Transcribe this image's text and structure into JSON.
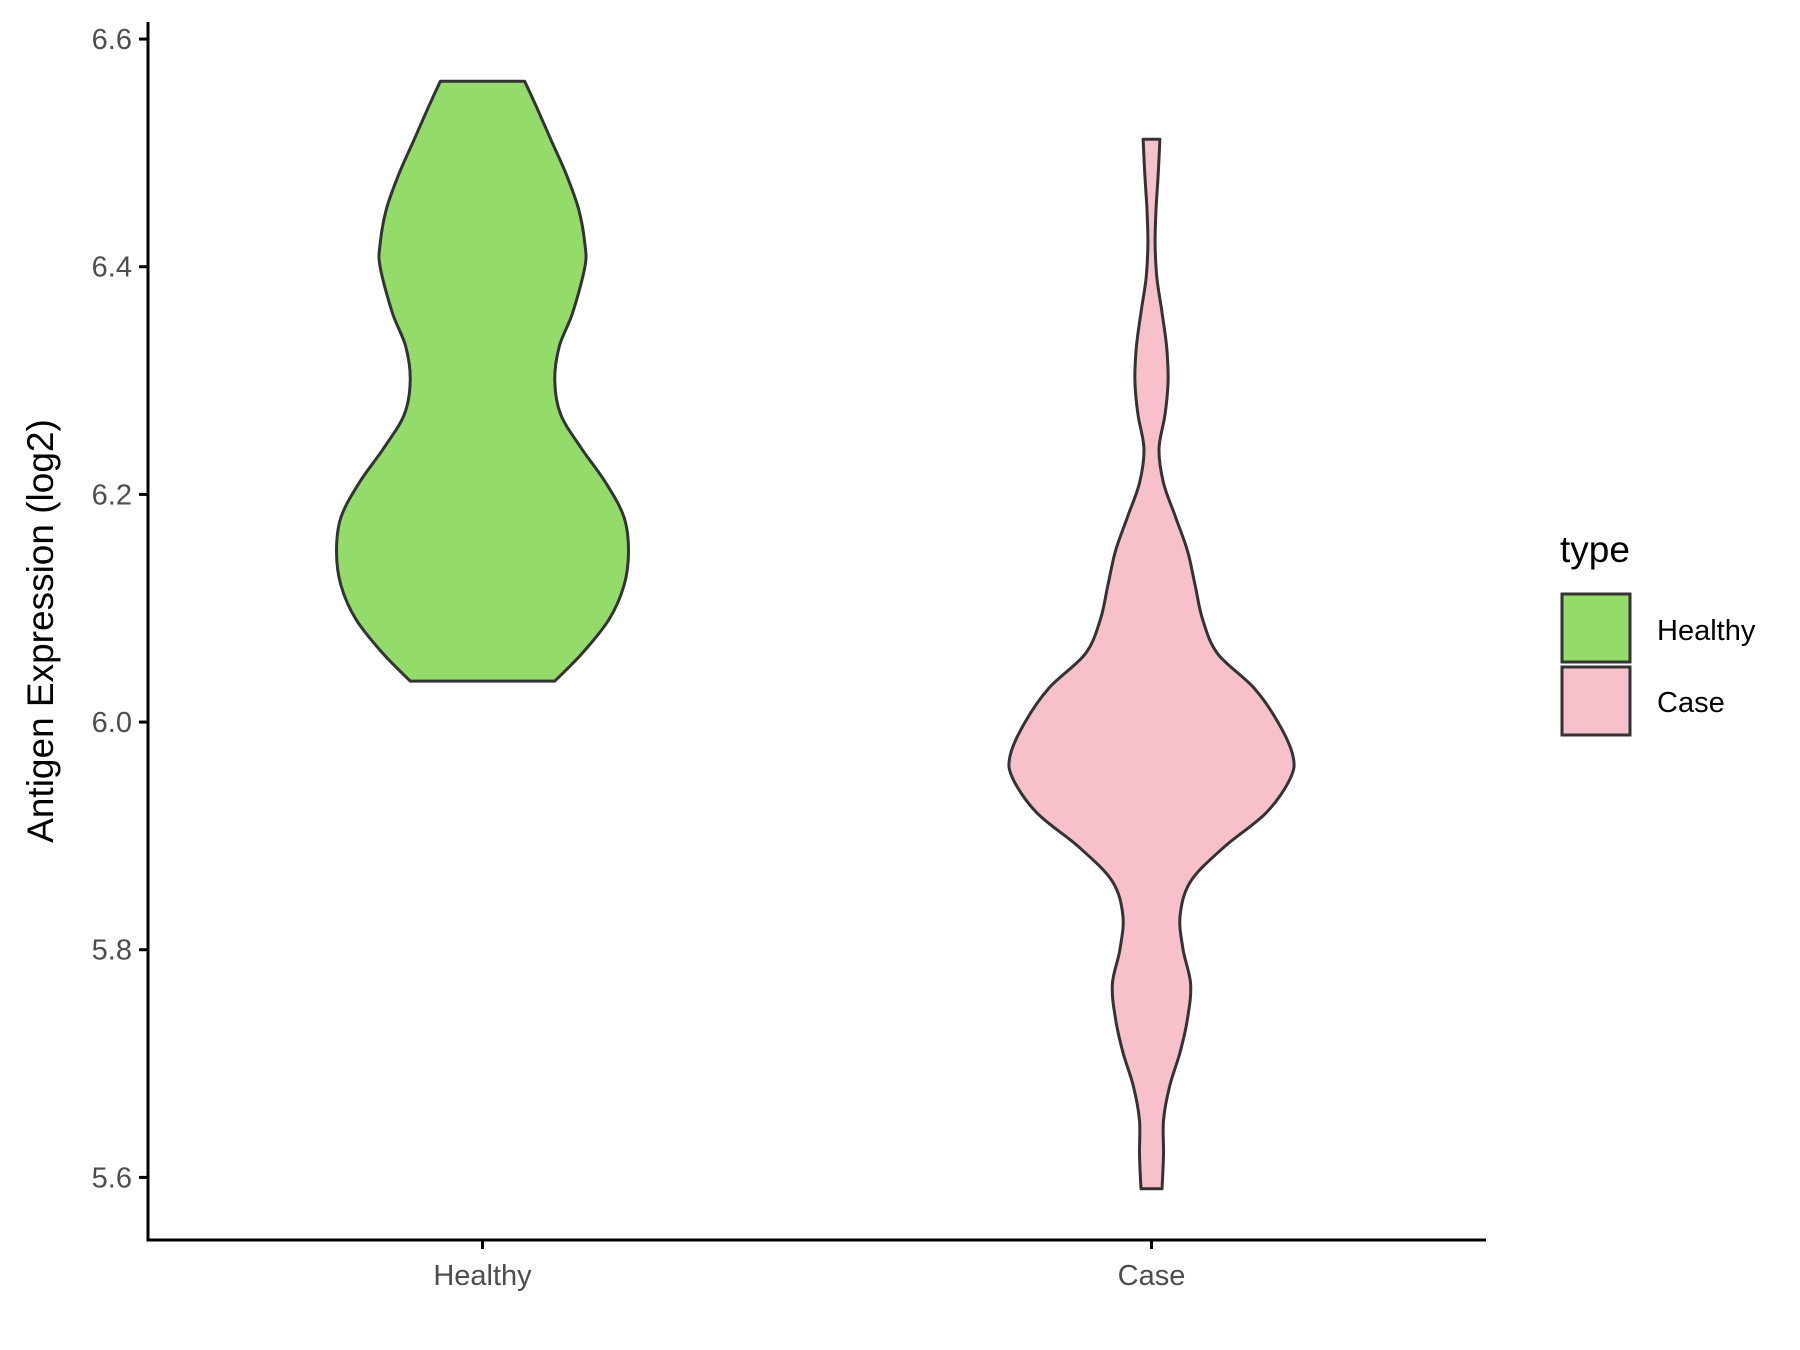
{
  "chart_data": {
    "type": "violin",
    "title": "",
    "xlabel": "",
    "ylabel": "Antigen Expression (log2)",
    "ylim": [
      5.545,
      6.615
    ],
    "yticks": [
      "5.6",
      "5.8",
      "6.0",
      "6.2",
      "6.4",
      "6.6"
    ],
    "categories": [
      "Healthy",
      "Case"
    ],
    "series": [
      {
        "name": "Healthy",
        "color": "#93dc6a",
        "min": 6.036,
        "max": 6.563,
        "density": [
          [
            6.036,
            0.24
          ],
          [
            6.06,
            0.33
          ],
          [
            6.09,
            0.42
          ],
          [
            6.12,
            0.47
          ],
          [
            6.15,
            0.485
          ],
          [
            6.18,
            0.47
          ],
          [
            6.21,
            0.41
          ],
          [
            6.24,
            0.33
          ],
          [
            6.27,
            0.26
          ],
          [
            6.3,
            0.24
          ],
          [
            6.33,
            0.255
          ],
          [
            6.36,
            0.3
          ],
          [
            6.4,
            0.34
          ],
          [
            6.42,
            0.34
          ],
          [
            6.45,
            0.32
          ],
          [
            6.48,
            0.28
          ],
          [
            6.51,
            0.23
          ],
          [
            6.54,
            0.18
          ],
          [
            6.563,
            0.14
          ]
        ]
      },
      {
        "name": "Case",
        "color": "#f7c0cb",
        "min": 5.59,
        "max": 6.512,
        "density": [
          [
            5.59,
            0.035
          ],
          [
            5.62,
            0.04
          ],
          [
            5.65,
            0.04
          ],
          [
            5.68,
            0.06
          ],
          [
            5.71,
            0.095
          ],
          [
            5.74,
            0.12
          ],
          [
            5.77,
            0.13
          ],
          [
            5.8,
            0.105
          ],
          [
            5.83,
            0.095
          ],
          [
            5.86,
            0.13
          ],
          [
            5.89,
            0.24
          ],
          [
            5.92,
            0.38
          ],
          [
            5.95,
            0.46
          ],
          [
            5.97,
            0.47
          ],
          [
            6.0,
            0.42
          ],
          [
            6.03,
            0.34
          ],
          [
            6.06,
            0.22
          ],
          [
            6.09,
            0.17
          ],
          [
            6.12,
            0.145
          ],
          [
            6.15,
            0.12
          ],
          [
            6.18,
            0.08
          ],
          [
            6.21,
            0.04
          ],
          [
            6.24,
            0.025
          ],
          [
            6.27,
            0.045
          ],
          [
            6.3,
            0.055
          ],
          [
            6.33,
            0.05
          ],
          [
            6.36,
            0.035
          ],
          [
            6.39,
            0.018
          ],
          [
            6.42,
            0.012
          ],
          [
            6.45,
            0.015
          ],
          [
            6.48,
            0.022
          ],
          [
            6.512,
            0.028
          ]
        ]
      }
    ],
    "legend": {
      "title": "type",
      "placement": "right",
      "entries": [
        "Healthy",
        "Case"
      ]
    }
  }
}
